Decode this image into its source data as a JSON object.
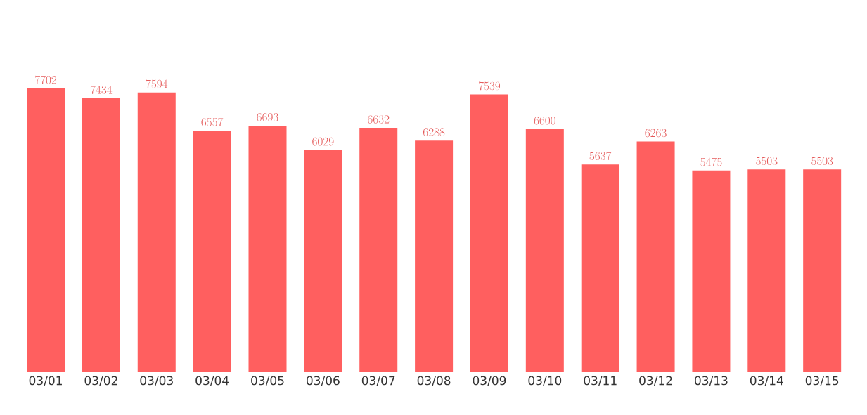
{
  "chart_data": {
    "type": "bar",
    "categories": [
      "03/01",
      "03/02",
      "03/03",
      "03/04",
      "03/05",
      "03/06",
      "03/07",
      "03/08",
      "03/09",
      "03/10",
      "03/11",
      "03/12",
      "03/13",
      "03/14",
      "03/15"
    ],
    "values": [
      7702,
      7434,
      7594,
      6557,
      6693,
      6029,
      6632,
      6288,
      7539,
      6600,
      5637,
      6263,
      5475,
      5503,
      5503
    ],
    "color": "#ff5f5f",
    "data_labels": true
  }
}
